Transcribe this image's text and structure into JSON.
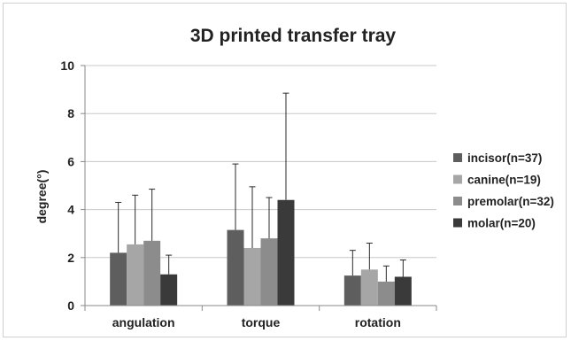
{
  "chart_data": {
    "type": "bar",
    "title": "3D printed transfer tray",
    "xlabel": "",
    "ylabel": "degree(°)",
    "ylim": [
      0,
      10
    ],
    "yticks": [
      0,
      2,
      4,
      6,
      8,
      10
    ],
    "grid": true,
    "legend_position": "right",
    "error_bars": true,
    "categories": [
      "angulation",
      "torque",
      "rotation"
    ],
    "series": [
      {
        "name": "incisor(n=37)",
        "color": "#5e5e5e",
        "values": [
          2.2,
          3.15,
          1.25
        ],
        "errors": [
          2.1,
          2.75,
          1.05
        ]
      },
      {
        "name": "canine(n=19)",
        "color": "#a6a6a6",
        "values": [
          2.55,
          2.4,
          1.5
        ],
        "errors": [
          2.05,
          2.55,
          1.1
        ]
      },
      {
        "name": "premolar(n=32)",
        "color": "#8c8c8c",
        "values": [
          2.7,
          2.8,
          1.0
        ],
        "errors": [
          2.15,
          1.7,
          0.65
        ]
      },
      {
        "name": "molar(n=20)",
        "color": "#3a3a3a",
        "values": [
          1.3,
          4.4,
          1.2
        ],
        "errors": [
          0.8,
          4.45,
          0.7
        ]
      }
    ]
  }
}
